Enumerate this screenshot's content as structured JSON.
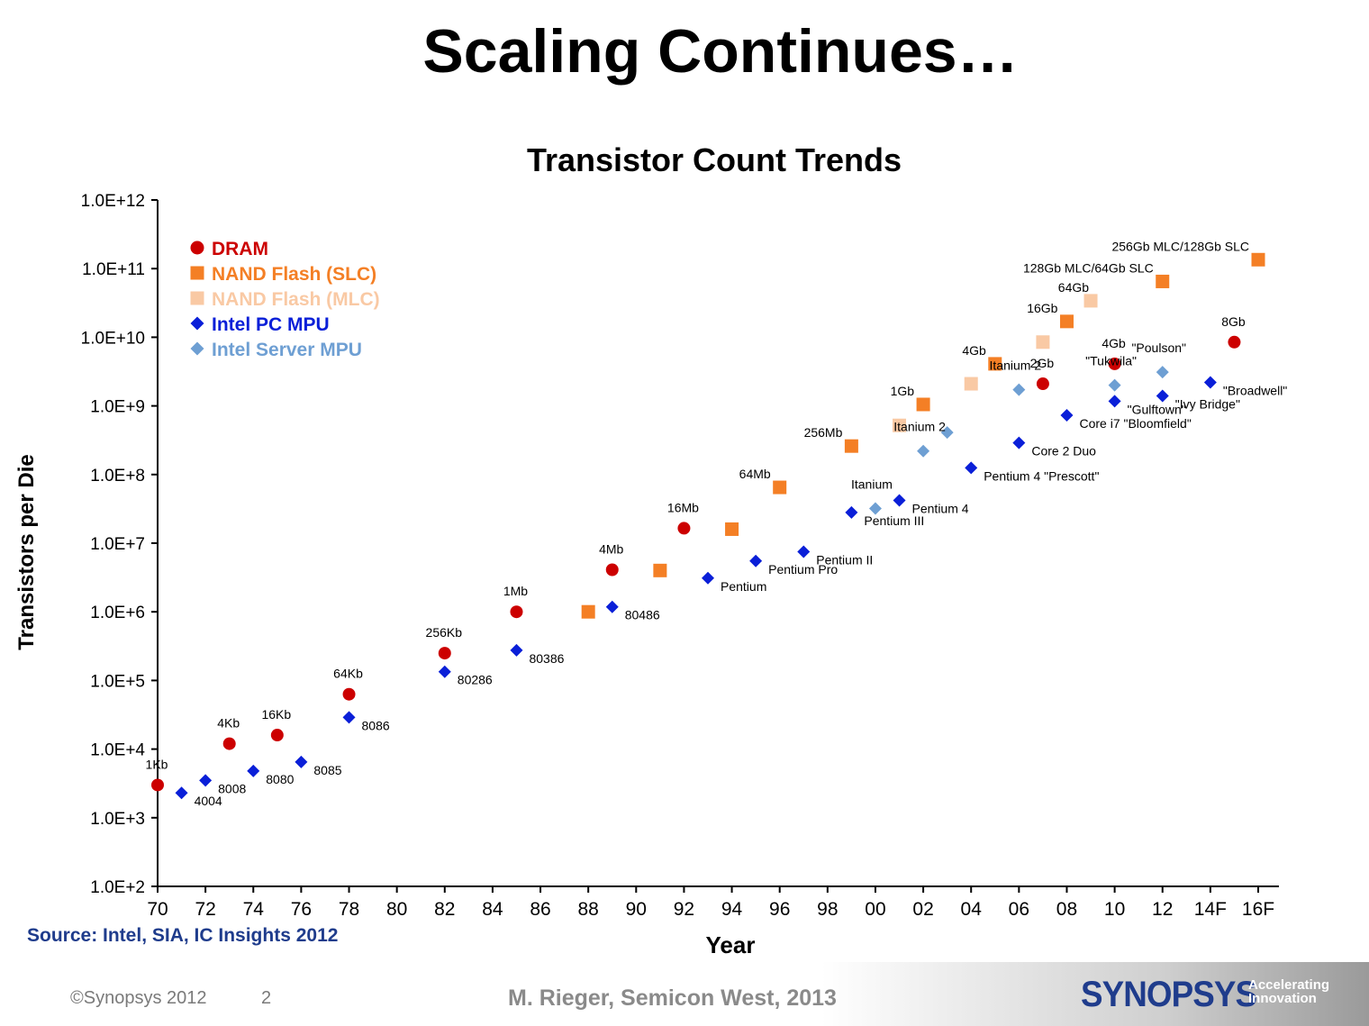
{
  "slide": {
    "title": "Scaling Continues…",
    "source": "Source:  Intel, SIA, IC Insights 2012",
    "copyright": "©Synopsys 2012",
    "page_number": "2",
    "credit": "M. Rieger, Semicon West, 2013",
    "logo_text": "SYNOPSYS",
    "logo_tagline": "Accelerating Innovation",
    "colors": {
      "dram": "#cc0000",
      "nand_slc": "#f47f25",
      "nand_mlc": "#f9c9a4",
      "pc_mpu": "#0a1fd8",
      "server_mpu": "#6e9fd3",
      "source_text": "#1f3c8c"
    }
  },
  "chart_data": {
    "type": "scatter",
    "title": "Transistor Count Trends",
    "xlabel": "Year",
    "ylabel": "Transistors per Die",
    "y_scale": "log",
    "ylim": [
      100,
      1000000000000
    ],
    "xlim": [
      1970,
      2017
    ],
    "x_ticks": [
      {
        "x": 1970,
        "label": "70"
      },
      {
        "x": 1972,
        "label": "72"
      },
      {
        "x": 1974,
        "label": "74"
      },
      {
        "x": 1976,
        "label": "76"
      },
      {
        "x": 1978,
        "label": "78"
      },
      {
        "x": 1980,
        "label": "80"
      },
      {
        "x": 1982,
        "label": "82"
      },
      {
        "x": 1984,
        "label": "84"
      },
      {
        "x": 1986,
        "label": "86"
      },
      {
        "x": 1988,
        "label": "88"
      },
      {
        "x": 1990,
        "label": "90"
      },
      {
        "x": 1992,
        "label": "92"
      },
      {
        "x": 1994,
        "label": "94"
      },
      {
        "x": 1996,
        "label": "96"
      },
      {
        "x": 1998,
        "label": "98"
      },
      {
        "x": 2000,
        "label": "00"
      },
      {
        "x": 2002,
        "label": "02"
      },
      {
        "x": 2004,
        "label": "04"
      },
      {
        "x": 2006,
        "label": "06"
      },
      {
        "x": 2008,
        "label": "08"
      },
      {
        "x": 2010,
        "label": "10"
      },
      {
        "x": 2012,
        "label": "12"
      },
      {
        "x": 2014,
        "label": "14F"
      },
      {
        "x": 2016,
        "label": "16F"
      }
    ],
    "y_ticks": [
      {
        "y": 100,
        "label": "1.0E+2"
      },
      {
        "y": 1000,
        "label": "1.0E+3"
      },
      {
        "y": 10000,
        "label": "1.0E+4"
      },
      {
        "y": 100000,
        "label": "1.0E+5"
      },
      {
        "y": 1000000,
        "label": "1.0E+6"
      },
      {
        "y": 10000000,
        "label": "1.0E+7"
      },
      {
        "y": 100000000,
        "label": "1.0E+8"
      },
      {
        "y": 1000000000,
        "label": "1.0E+9"
      },
      {
        "y": 10000000000,
        "label": "1.0E+10"
      },
      {
        "y": 100000000000,
        "label": "1.0E+11"
      },
      {
        "y": 1000000000000,
        "label": "1.0E+12"
      }
    ],
    "grid": false,
    "legend_position": "top-left",
    "series": [
      {
        "name": "DRAM",
        "marker": "circle",
        "color": "#cc0000",
        "points": [
          {
            "x": 1970,
            "y": 3000,
            "label": "1Kb"
          },
          {
            "x": 1973,
            "y": 12000,
            "label": "4Kb"
          },
          {
            "x": 1975,
            "y": 16000,
            "label": "16Kb"
          },
          {
            "x": 1978,
            "y": 63000,
            "label": "64Kb"
          },
          {
            "x": 1982,
            "y": 250000,
            "label": "256Kb"
          },
          {
            "x": 1985,
            "y": 1000000,
            "label": "1Mb"
          },
          {
            "x": 1989,
            "y": 4100000,
            "label": "4Mb"
          },
          {
            "x": 1992,
            "y": 16500000,
            "label": "16Mb"
          },
          {
            "x": 2007,
            "y": 2100000000,
            "label": "2Gb"
          },
          {
            "x": 2010,
            "y": 4100000000,
            "label": "4Gb"
          },
          {
            "x": 2015,
            "y": 8500000000,
            "label": "8Gb"
          }
        ]
      },
      {
        "name": "NAND Flash (SLC)",
        "marker": "square",
        "color": "#f47f25",
        "points": [
          {
            "x": 1988,
            "y": 1000000,
            "label": ""
          },
          {
            "x": 1991,
            "y": 4000000,
            "label": ""
          },
          {
            "x": 1994,
            "y": 16000000,
            "label": ""
          },
          {
            "x": 1996,
            "y": 65000000,
            "label": "64Mb"
          },
          {
            "x": 1999,
            "y": 260000000,
            "label": "256Mb"
          },
          {
            "x": 2002,
            "y": 1050000000,
            "label": "1Gb"
          },
          {
            "x": 2005,
            "y": 4100000000,
            "label": "4Gb"
          },
          {
            "x": 2008,
            "y": 17000000000,
            "label": "16Gb"
          },
          {
            "x": 2012,
            "y": 65000000000,
            "label": "128Gb MLC/64Gb SLC"
          },
          {
            "x": 2016,
            "y": 135000000000,
            "label": "256Gb MLC/128Gb SLC"
          }
        ]
      },
      {
        "name": "NAND Flash (MLC)",
        "marker": "square",
        "color": "#f9c9a4",
        "points": [
          {
            "x": 2001,
            "y": 520000000,
            "label": ""
          },
          {
            "x": 2004,
            "y": 2100000000,
            "label": ""
          },
          {
            "x": 2007,
            "y": 8500000000,
            "label": ""
          },
          {
            "x": 2009,
            "y": 34000000000,
            "label": "64Gb"
          }
        ]
      },
      {
        "name": "Intel PC MPU",
        "marker": "diamond",
        "color": "#0a1fd8",
        "points": [
          {
            "x": 1971,
            "y": 2300,
            "label": "4004"
          },
          {
            "x": 1972,
            "y": 3500,
            "label": "8008"
          },
          {
            "x": 1974,
            "y": 4800,
            "label": "8080"
          },
          {
            "x": 1976,
            "y": 6500,
            "label": "8085"
          },
          {
            "x": 1978,
            "y": 29000,
            "label": "8086"
          },
          {
            "x": 1982,
            "y": 134000,
            "label": "80286"
          },
          {
            "x": 1985,
            "y": 275000,
            "label": "80386"
          },
          {
            "x": 1989,
            "y": 1180000,
            "label": "80486"
          },
          {
            "x": 1993,
            "y": 3100000,
            "label": "Pentium"
          },
          {
            "x": 1995,
            "y": 5500000,
            "label": "Pentium Pro"
          },
          {
            "x": 1997,
            "y": 7500000,
            "label": "Pentium II"
          },
          {
            "x": 1999,
            "y": 28000000,
            "label": "Pentium III"
          },
          {
            "x": 2001,
            "y": 42000000,
            "label": "Pentium 4"
          },
          {
            "x": 2004,
            "y": 125000000,
            "label": "Pentium 4 \"Prescott\""
          },
          {
            "x": 2006,
            "y": 290000000,
            "label": "Core 2 Duo"
          },
          {
            "x": 2008,
            "y": 730000000,
            "label": "Core i7 \"Bloomfield\""
          },
          {
            "x": 2010,
            "y": 1170000000,
            "label": "\"Gulftown\""
          },
          {
            "x": 2012,
            "y": 1400000000,
            "label": "\"Ivy Bridge\""
          },
          {
            "x": 2014,
            "y": 2200000000,
            "label": "\"Broadwell\""
          }
        ]
      },
      {
        "name": "Intel Server MPU",
        "marker": "diamond",
        "color": "#6e9fd3",
        "points": [
          {
            "x": 2000,
            "y": 32000000,
            "label": "Itanium"
          },
          {
            "x": 2002,
            "y": 220000000,
            "label": "Itanium 2"
          },
          {
            "x": 2003,
            "y": 410000000,
            "label": ""
          },
          {
            "x": 2006,
            "y": 1720000000,
            "label": "Itanium 2"
          },
          {
            "x": 2010,
            "y": 2000000000,
            "label": "\"Tukwila\""
          },
          {
            "x": 2012,
            "y": 3100000000,
            "label": "\"Poulson\""
          }
        ]
      }
    ]
  }
}
